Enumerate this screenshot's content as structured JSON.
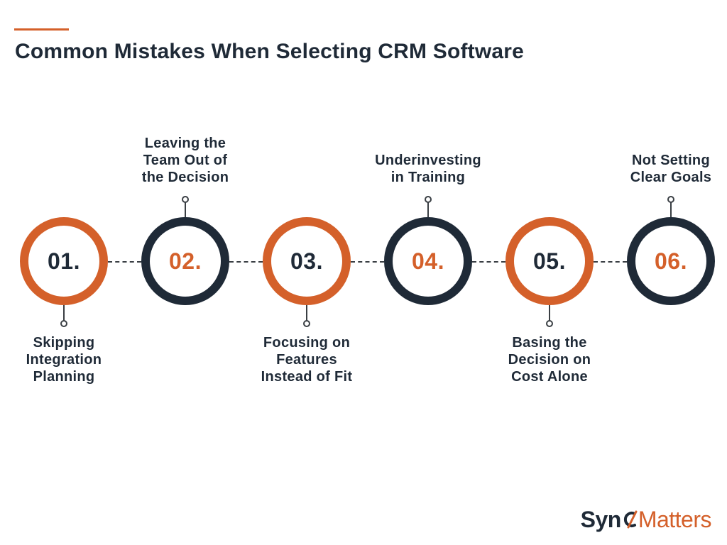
{
  "title": "Common Mistakes When Selecting CRM Software",
  "colors": {
    "accent": "#d4602a",
    "dark": "#1f2a37",
    "line": "#3a3f44"
  },
  "steps": [
    {
      "number": "01.",
      "label": "Skipping\nIntegration\nPlanning",
      "ring": "orange",
      "number_color": "dark",
      "label_position": "below"
    },
    {
      "number": "02.",
      "label": "Leaving the\nTeam Out of\nthe Decision",
      "ring": "dark",
      "number_color": "orange",
      "label_position": "above"
    },
    {
      "number": "03.",
      "label": "Focusing on\nFeatures\nInstead of Fit",
      "ring": "orange",
      "number_color": "dark",
      "label_position": "below"
    },
    {
      "number": "04.",
      "label": "Underinvesting\nin Training",
      "ring": "dark",
      "number_color": "orange",
      "label_position": "above"
    },
    {
      "number": "05.",
      "label": "Basing the\nDecision on\nCost Alone",
      "ring": "orange",
      "number_color": "dark",
      "label_position": "below"
    },
    {
      "number": "06.",
      "label": "Not Setting\nClear Goals",
      "ring": "dark",
      "number_color": "orange",
      "label_position": "above"
    }
  ],
  "logo": {
    "part1": "Syn",
    "part2": "Matters",
    "mark_icon": "c-swoosh-icon"
  }
}
